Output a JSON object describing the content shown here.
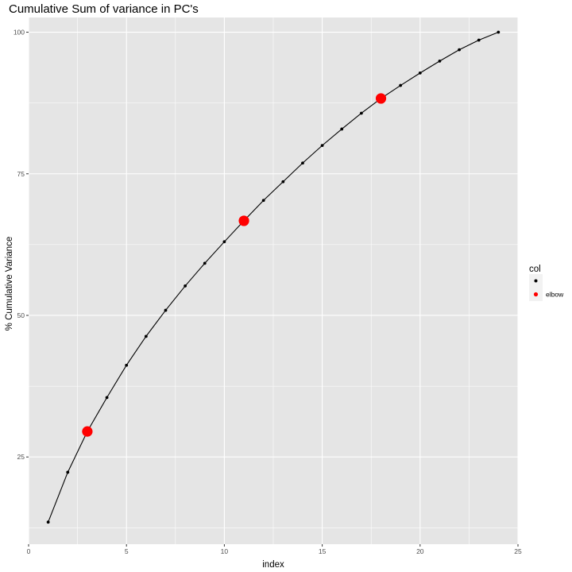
{
  "chart_data": {
    "type": "line",
    "title": "Cumulative Sum of variance in PC's",
    "xlabel": "index",
    "ylabel": "% Cumulative Variance",
    "xlim": [
      0,
      25
    ],
    "ylim": [
      9.6,
      102.6
    ],
    "x_ticks": [
      0,
      5,
      10,
      15,
      20,
      25
    ],
    "y_ticks": [
      25,
      50,
      75,
      100
    ],
    "grid": true,
    "legend": {
      "title": "col",
      "placement": "right",
      "entries": [
        {
          "label": "",
          "color": "#000000"
        },
        {
          "label": "elbow",
          "color": "#ff0000"
        }
      ]
    },
    "x": [
      1,
      2,
      3,
      4,
      5,
      6,
      7,
      8,
      9,
      10,
      11,
      12,
      13,
      14,
      15,
      16,
      17,
      18,
      19,
      20,
      21,
      22,
      23,
      24
    ],
    "y": [
      13.5,
      22.3,
      29.5,
      35.5,
      41.2,
      46.3,
      50.9,
      55.2,
      59.2,
      63.0,
      66.7,
      70.3,
      73.6,
      76.9,
      80.0,
      82.9,
      85.7,
      88.3,
      90.6,
      92.8,
      94.9,
      96.9,
      98.6,
      100.0
    ],
    "elbow_indices": [
      3,
      11,
      18
    ],
    "colors": {
      "line": "#000000",
      "point": "#000000",
      "elbow": "#ff0000",
      "panel": "#e5e5e5",
      "grid": "#ffffff"
    }
  }
}
